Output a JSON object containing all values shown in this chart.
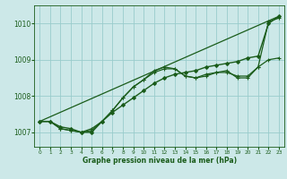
{
  "background_color": "#cce8e8",
  "grid_color": "#99cccc",
  "line_color": "#1a5c1a",
  "xlabel": "Graphe pression niveau de la mer (hPa)",
  "xlim": [
    -0.5,
    23.5
  ],
  "ylim": [
    1006.6,
    1010.5
  ],
  "yticks": [
    1007,
    1008,
    1009,
    1010
  ],
  "xticks": [
    0,
    1,
    2,
    3,
    4,
    5,
    6,
    7,
    8,
    9,
    10,
    11,
    12,
    13,
    14,
    15,
    16,
    17,
    18,
    19,
    20,
    21,
    22,
    23
  ],
  "series": [
    {
      "x": [
        0,
        23
      ],
      "y": [
        1007.3,
        1010.2
      ],
      "marker": null,
      "markersize": 0,
      "linewidth": 0.9
    },
    {
      "x": [
        0,
        1,
        2,
        3,
        4,
        5,
        6,
        7,
        8,
        9,
        10,
        11,
        12,
        13,
        14,
        15,
        16,
        17,
        18,
        19,
        20,
        21,
        22,
        23
      ],
      "y": [
        1007.3,
        1007.3,
        1007.15,
        1007.1,
        1007.0,
        1007.0,
        1007.3,
        1007.55,
        1007.75,
        1007.95,
        1008.15,
        1008.35,
        1008.5,
        1008.6,
        1008.65,
        1008.7,
        1008.8,
        1008.85,
        1008.9,
        1008.95,
        1009.05,
        1009.1,
        1010.0,
        1010.2
      ],
      "marker": "D",
      "markersize": 2.0,
      "linewidth": 1.0
    },
    {
      "x": [
        0,
        1,
        2,
        3,
        4,
        5,
        6,
        7,
        8,
        9,
        10,
        11,
        12,
        13,
        14,
        15,
        16,
        17,
        18,
        19,
        20,
        21,
        22,
        23
      ],
      "y": [
        1007.3,
        1007.3,
        1007.1,
        1007.05,
        1007.0,
        1007.05,
        1007.3,
        1007.6,
        1007.95,
        1008.25,
        1008.45,
        1008.65,
        1008.75,
        1008.75,
        1008.55,
        1008.5,
        1008.55,
        1008.65,
        1008.7,
        1008.5,
        1008.5,
        1008.8,
        1009.0,
        1009.05
      ],
      "marker": "+",
      "markersize": 3.5,
      "linewidth": 0.9
    },
    {
      "x": [
        0,
        1,
        2,
        3,
        4,
        5,
        6,
        7,
        8,
        9,
        10,
        11,
        12,
        13,
        14,
        15,
        16,
        17,
        18,
        19,
        20,
        21,
        22,
        23
      ],
      "y": [
        1007.3,
        1007.3,
        1007.1,
        1007.05,
        1007.0,
        1007.1,
        1007.3,
        1007.6,
        1007.95,
        1008.25,
        1008.45,
        1008.7,
        1008.8,
        1008.75,
        1008.55,
        1008.5,
        1008.6,
        1008.65,
        1008.65,
        1008.55,
        1008.55,
        1008.8,
        1010.05,
        1010.15
      ],
      "marker": "+",
      "markersize": 3.5,
      "linewidth": 0.9
    }
  ]
}
